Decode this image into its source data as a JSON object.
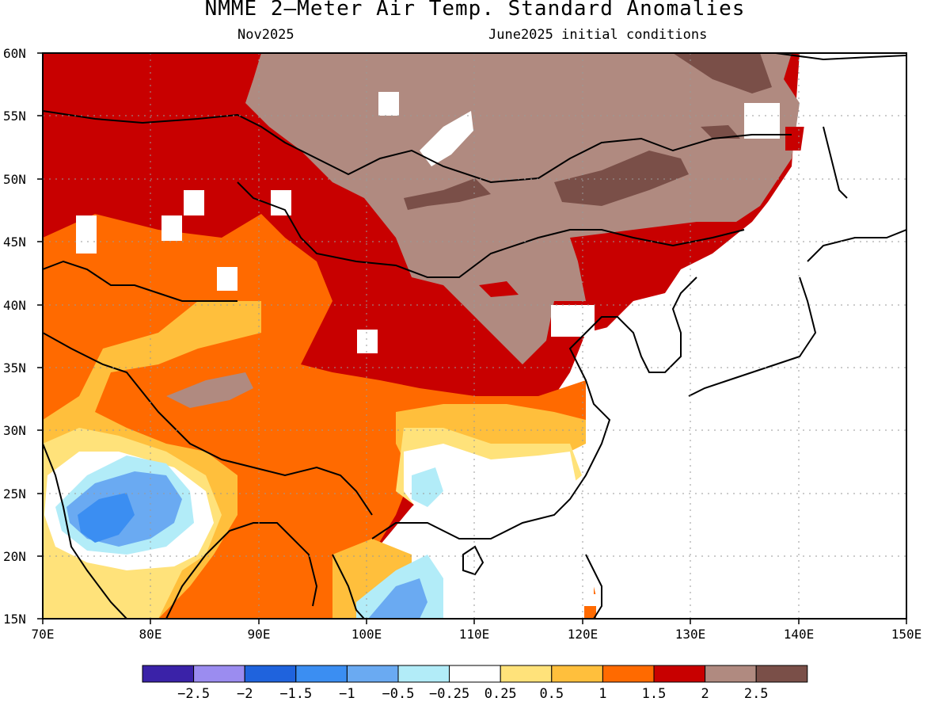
{
  "title": "NMME 2—Meter Air Temp. Standard Anomalies",
  "valid_month": "Nov2025",
  "initial_conditions": "June2025 initial conditions",
  "map": {
    "lat_labels": [
      "60N",
      "55N",
      "50N",
      "45N",
      "40N",
      "35N",
      "30N",
      "25N",
      "20N",
      "15N"
    ],
    "lon_labels": [
      "70E",
      "80E",
      "90E",
      "100E",
      "110E",
      "120E",
      "130E",
      "140E",
      "150E"
    ],
    "lon_range": [
      70,
      150
    ],
    "lat_range": [
      15,
      60
    ],
    "gridlines": "dotted"
  },
  "colorbar": {
    "colors": [
      "#3a22a8",
      "#9b8cf0",
      "#1f63dd",
      "#3b8ef2",
      "#6aaaf2",
      "#b2ecf8",
      "#ffffff",
      "#ffe27a",
      "#ffbf3c",
      "#ff6a00",
      "#c80000",
      "#b08a80",
      "#7a4f48"
    ],
    "labels": [
      "−2.5",
      "−2",
      "−1.5",
      "−1",
      "−0.5",
      "−0.25",
      "0.25",
      "0.5",
      "1",
      "1.5",
      "2",
      "2.5"
    ]
  }
}
